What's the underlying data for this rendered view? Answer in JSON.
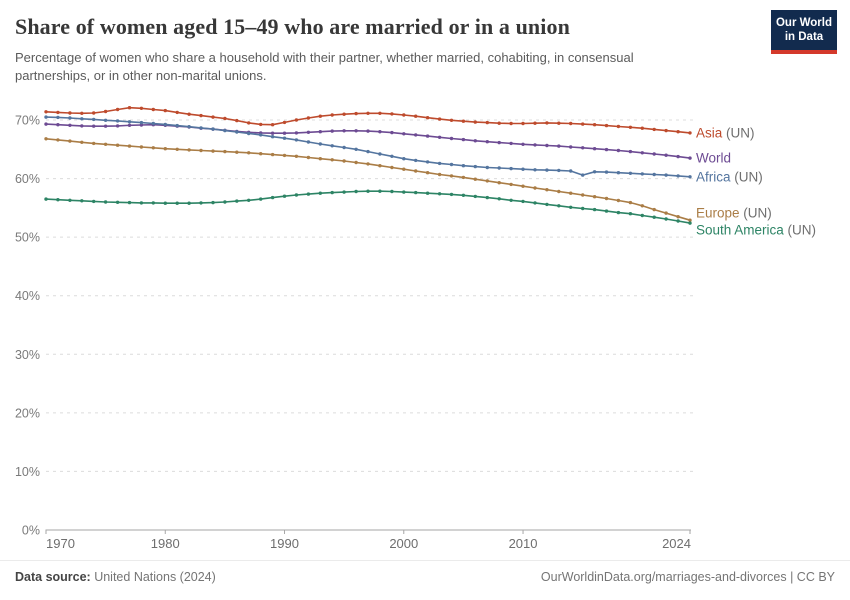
{
  "header": {
    "title": "Share of women aged 15–49 who are married or in a union",
    "subtitle": "Percentage of women who share a household with their partner, whether married, cohabiting, in consensual partnerships, or in other non-marital unions.",
    "logo": {
      "line1": "Our World",
      "line2": "in Data",
      "bg_color": "#122B4E",
      "stripe_color": "#D4392B"
    }
  },
  "footer": {
    "datasource_label": "Data source:",
    "datasource_value": " United Nations (2024)",
    "citation": "OurWorldinData.org/marriages-and-divorces | CC BY"
  },
  "chart_data": {
    "type": "line",
    "title": "Share of women aged 15–49 who are married or in a union",
    "xlabel": "",
    "ylabel": "",
    "ylim": [
      0,
      72.5
    ],
    "yticks": [
      0,
      10,
      20,
      30,
      40,
      50,
      60,
      70
    ],
    "ytick_suffix": "%",
    "xticks": [
      1970,
      1980,
      1990,
      2000,
      2010,
      2024
    ],
    "grid": "horizontal-dashed",
    "legend_position": "labels-at-line-ends",
    "label_suffix_color": "#6F6F6F",
    "x": [
      1970,
      1971,
      1972,
      1973,
      1974,
      1975,
      1976,
      1977,
      1978,
      1979,
      1980,
      1981,
      1982,
      1983,
      1984,
      1985,
      1986,
      1987,
      1988,
      1989,
      1990,
      1991,
      1992,
      1993,
      1994,
      1995,
      1996,
      1997,
      1998,
      1999,
      2000,
      2001,
      2002,
      2003,
      2004,
      2005,
      2006,
      2007,
      2008,
      2009,
      2010,
      2011,
      2012,
      2013,
      2014,
      2015,
      2016,
      2017,
      2018,
      2019,
      2020,
      2021,
      2022,
      2023,
      2024
    ],
    "series": [
      {
        "name": "Asia (UN)",
        "label": "Asia",
        "label_suffix": " (UN)",
        "color": "#BE4B2D",
        "values": [
          71.4,
          71.3,
          71.2,
          71.15,
          71.2,
          71.45,
          71.8,
          72.1,
          72.0,
          71.8,
          71.6,
          71.3,
          71.0,
          70.75,
          70.5,
          70.25,
          69.9,
          69.5,
          69.25,
          69.2,
          69.6,
          70.0,
          70.35,
          70.65,
          70.85,
          71.0,
          71.1,
          71.15,
          71.15,
          71.05,
          70.85,
          70.65,
          70.4,
          70.15,
          69.95,
          69.8,
          69.65,
          69.55,
          69.45,
          69.4,
          69.4,
          69.45,
          69.5,
          69.45,
          69.4,
          69.3,
          69.2,
          69.05,
          68.9,
          68.75,
          68.6,
          68.4,
          68.2,
          68.0,
          67.8
        ]
      },
      {
        "name": "World",
        "label": "World",
        "label_suffix": "",
        "color": "#6D4B93",
        "values": [
          69.3,
          69.2,
          69.1,
          69.0,
          68.95,
          68.95,
          69.0,
          69.1,
          69.15,
          69.2,
          69.1,
          68.95,
          68.8,
          68.6,
          68.45,
          68.25,
          68.05,
          67.9,
          67.8,
          67.75,
          67.75,
          67.8,
          67.9,
          68.0,
          68.1,
          68.15,
          68.15,
          68.1,
          68.0,
          67.85,
          67.65,
          67.45,
          67.25,
          67.05,
          66.85,
          66.65,
          66.45,
          66.3,
          66.15,
          66.0,
          65.85,
          65.75,
          65.65,
          65.55,
          65.4,
          65.25,
          65.1,
          64.95,
          64.8,
          64.6,
          64.4,
          64.2,
          64.0,
          63.75,
          63.5
        ]
      },
      {
        "name": "Africa (UN)",
        "label": "Africa",
        "label_suffix": " (UN)",
        "color": "#54759F",
        "values": [
          70.5,
          70.45,
          70.35,
          70.2,
          70.1,
          69.95,
          69.85,
          69.7,
          69.55,
          69.4,
          69.25,
          69.05,
          68.85,
          68.65,
          68.45,
          68.2,
          67.95,
          67.7,
          67.45,
          67.15,
          66.9,
          66.6,
          66.25,
          65.9,
          65.6,
          65.3,
          65.0,
          64.6,
          64.2,
          63.8,
          63.4,
          63.1,
          62.85,
          62.6,
          62.4,
          62.2,
          62.05,
          61.9,
          61.8,
          61.7,
          61.6,
          61.5,
          61.45,
          61.4,
          61.3,
          60.6,
          61.15,
          61.1,
          61.0,
          60.9,
          60.8,
          60.7,
          60.6,
          60.45,
          60.3
        ]
      },
      {
        "name": "Europe (UN)",
        "label": "Europe",
        "label_suffix": " (UN)",
        "color": "#AA7D46",
        "values": [
          66.8,
          66.6,
          66.4,
          66.2,
          66.0,
          65.85,
          65.7,
          65.55,
          65.4,
          65.25,
          65.1,
          65.0,
          64.9,
          64.8,
          64.7,
          64.6,
          64.5,
          64.4,
          64.25,
          64.1,
          63.95,
          63.8,
          63.6,
          63.4,
          63.2,
          63.0,
          62.75,
          62.5,
          62.2,
          61.9,
          61.6,
          61.3,
          61.0,
          60.7,
          60.45,
          60.2,
          59.9,
          59.6,
          59.3,
          59.0,
          58.7,
          58.4,
          58.1,
          57.8,
          57.5,
          57.2,
          56.9,
          56.6,
          56.25,
          55.9,
          55.35,
          54.7,
          54.1,
          53.5,
          52.9
        ]
      },
      {
        "name": "South America (UN)",
        "label": "South America",
        "label_suffix": " (UN)",
        "color": "#2D8465",
        "values": [
          56.5,
          56.4,
          56.3,
          56.2,
          56.1,
          56.0,
          55.95,
          55.9,
          55.85,
          55.85,
          55.8,
          55.8,
          55.8,
          55.85,
          55.9,
          56.0,
          56.15,
          56.3,
          56.5,
          56.75,
          57.0,
          57.2,
          57.35,
          57.5,
          57.6,
          57.7,
          57.8,
          57.85,
          57.85,
          57.8,
          57.7,
          57.6,
          57.5,
          57.4,
          57.3,
          57.15,
          56.95,
          56.75,
          56.55,
          56.3,
          56.1,
          55.85,
          55.6,
          55.35,
          55.1,
          54.9,
          54.7,
          54.45,
          54.2,
          54.0,
          53.7,
          53.4,
          53.1,
          52.75,
          52.4
        ]
      }
    ]
  }
}
